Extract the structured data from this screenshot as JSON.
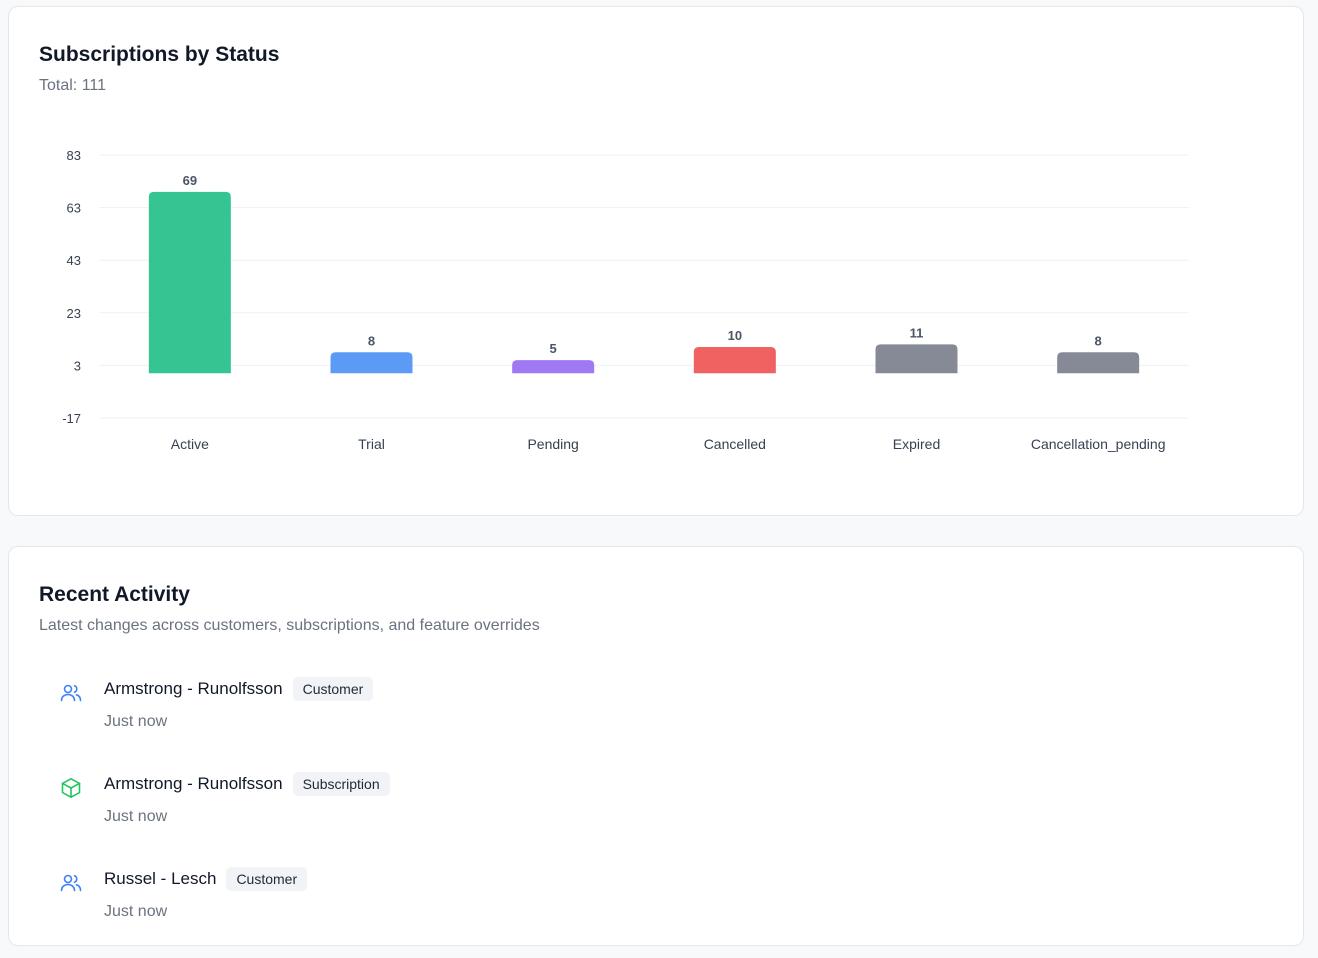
{
  "status_card": {
    "title": "Subscriptions by Status",
    "total": "Total: 111"
  },
  "chart_data": {
    "type": "bar",
    "categories": [
      "Active",
      "Trial",
      "Pending",
      "Cancelled",
      "Expired",
      "Cancellation_pending"
    ],
    "values": [
      69,
      8,
      5,
      10,
      11,
      8
    ],
    "colors": [
      "#34c593",
      "#5b9bf5",
      "#a078f4",
      "#f06262",
      "#858a96",
      "#858a96"
    ],
    "yticks": [
      83,
      63,
      43,
      23,
      3,
      -17
    ],
    "ylim": [
      -17,
      83
    ],
    "baseline": 0,
    "grid": true,
    "title": "Subscriptions by Status",
    "xlabel": "",
    "ylabel": ""
  },
  "activity_card": {
    "title": "Recent Activity",
    "subtitle": "Latest changes across customers, subscriptions, and feature overrides",
    "items": [
      {
        "name": "Armstrong - Runolfsson",
        "badge": "Customer",
        "time": "Just now",
        "icon": "users-icon",
        "icon_color": "#3b82f6"
      },
      {
        "name": "Armstrong - Runolfsson",
        "badge": "Subscription",
        "time": "Just now",
        "icon": "package-icon",
        "icon_color": "#22c55e"
      },
      {
        "name": "Russel - Lesch",
        "badge": "Customer",
        "time": "Just now",
        "icon": "users-icon",
        "icon_color": "#3b82f6"
      }
    ]
  }
}
